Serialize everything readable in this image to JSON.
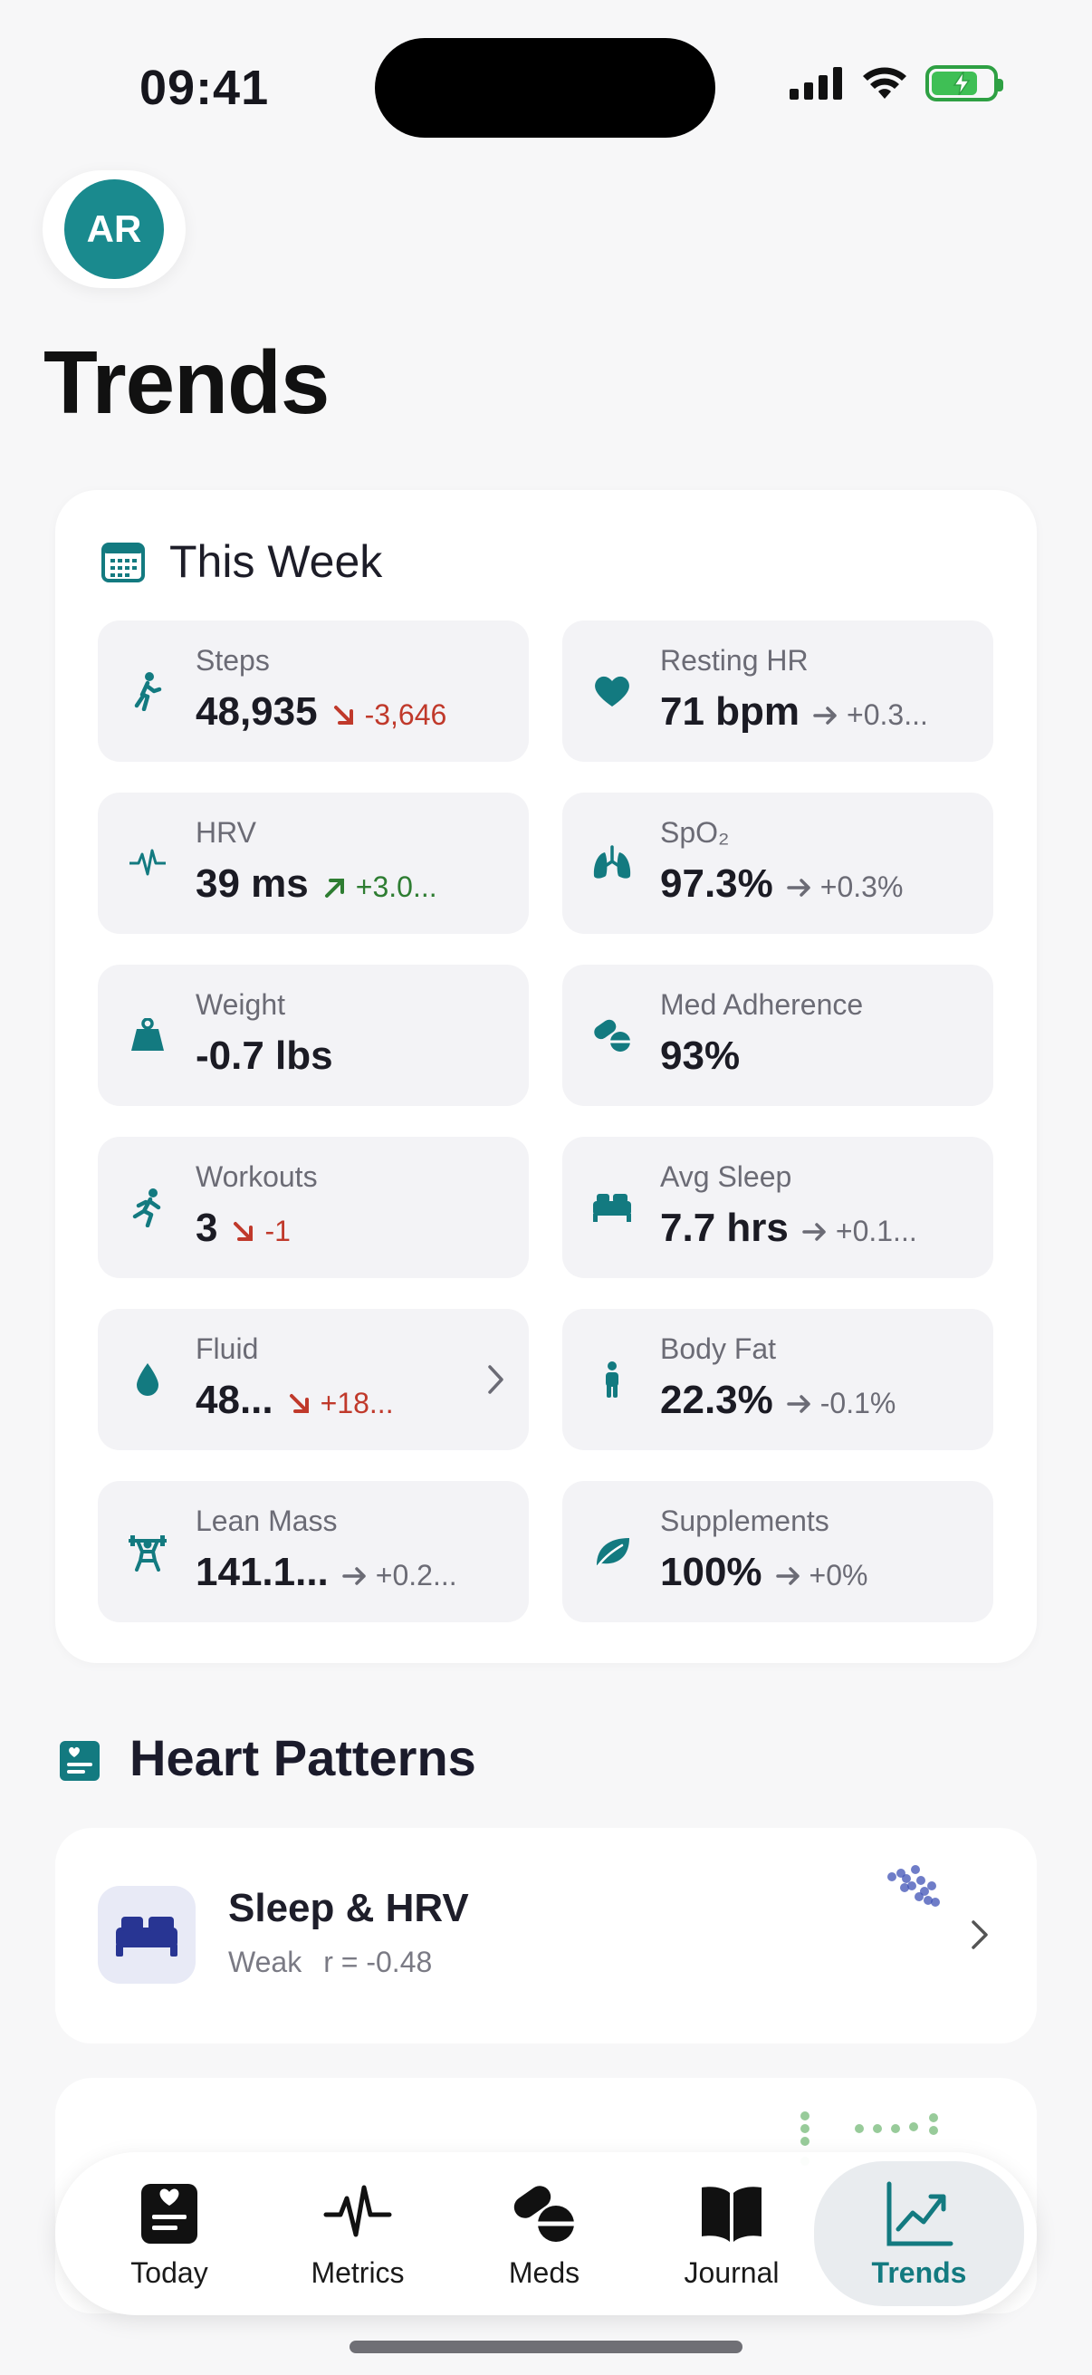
{
  "status": {
    "time": "09:41"
  },
  "user": {
    "initials": "AR"
  },
  "page": {
    "title": "Trends"
  },
  "week": {
    "title": "This Week",
    "tiles": [
      {
        "label": "Steps",
        "value": "48,935",
        "delta": "-3,646",
        "trend": "down"
      },
      {
        "label": "Resting HR",
        "value": "71 bpm",
        "delta": "+0.3...",
        "trend": "flat"
      },
      {
        "label": "HRV",
        "value": "39 ms",
        "delta": "+3.0...",
        "trend": "up"
      },
      {
        "label": "SpO₂",
        "value": "97.3%",
        "delta": "+0.3%",
        "trend": "flat"
      },
      {
        "label": "Weight",
        "value": "-0.7 lbs",
        "delta": "",
        "trend": ""
      },
      {
        "label": "Med Adherence",
        "value": "93%",
        "delta": "",
        "trend": ""
      },
      {
        "label": "Workouts",
        "value": "3",
        "delta": "-1",
        "trend": "down"
      },
      {
        "label": "Avg Sleep",
        "value": "7.7 hrs",
        "delta": "+0.1...",
        "trend": "flat"
      },
      {
        "label": "Fluid",
        "value": "48...",
        "delta": "+18...",
        "trend": "down"
      },
      {
        "label": "Body Fat",
        "value": "22.3%",
        "delta": "-0.1%",
        "trend": "flat"
      },
      {
        "label": "Lean Mass",
        "value": "141.1...",
        "delta": "+0.2...",
        "trend": "flat"
      },
      {
        "label": "Supplements",
        "value": "100%",
        "delta": "+0%",
        "trend": "flat"
      }
    ]
  },
  "heart_patterns": {
    "title": "Heart Patterns",
    "cards": [
      {
        "title": "Sleep & HRV",
        "strength": "Weak",
        "r": "r = -0.48"
      }
    ]
  },
  "tabs": [
    {
      "label": "Today"
    },
    {
      "label": "Metrics"
    },
    {
      "label": "Meds"
    },
    {
      "label": "Journal"
    },
    {
      "label": "Trends"
    }
  ],
  "colors": {
    "accent": "#137a80",
    "avatar": "#1a8a8e",
    "down": "#c0392b",
    "up": "#2e7d32"
  }
}
